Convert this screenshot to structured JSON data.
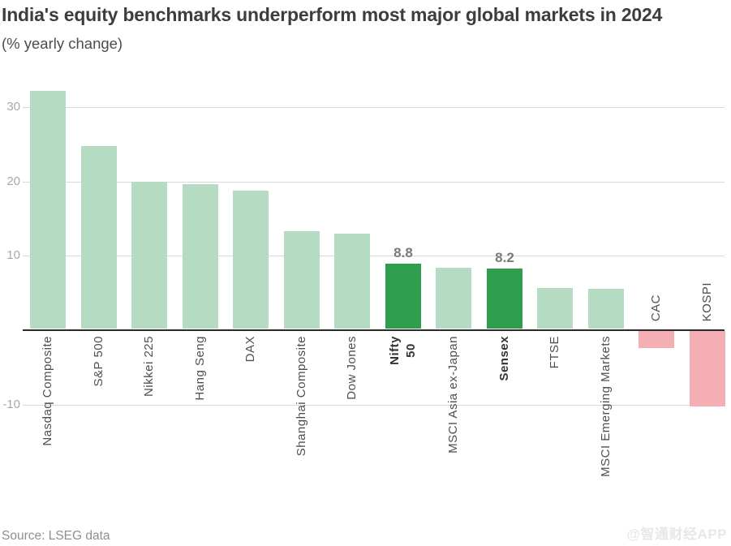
{
  "title": "India's equity benchmarks underperform most major global markets in 2024",
  "subtitle": "(% yearly change)",
  "source": "Source: LSEG data",
  "watermark": "@智通财经APP",
  "chart_data": {
    "type": "bar",
    "title": "India's equity benchmarks underperform most major global markets in 2024",
    "subtitle": "(% yearly change)",
    "xlabel": "",
    "ylabel": "% yearly change",
    "categories": [
      "Nasdaq Composite",
      "S&P 500",
      "Nikkei 225",
      "Hang Seng",
      "DAX",
      "Shanghai Composite",
      "Dow Jones",
      "Nifty 50",
      "MSCI Asia ex-Japan",
      "Sensex",
      "FTSE",
      "MSCI Emerging Markets",
      "CAC",
      "KOSPI"
    ],
    "values": [
      32.1,
      24.6,
      19.9,
      19.5,
      18.7,
      13.2,
      12.9,
      8.8,
      8.3,
      8.2,
      5.6,
      5.4,
      -2.4,
      -10.2
    ],
    "data_labels": [
      null,
      null,
      null,
      null,
      null,
      null,
      null,
      "8.8",
      null,
      "8.2",
      null,
      null,
      null,
      null
    ],
    "bar_styles": [
      "light_green",
      "light_green",
      "light_green",
      "light_green",
      "light_green",
      "light_green",
      "light_green",
      "dark_green",
      "light_green",
      "dark_green",
      "light_green",
      "light_green",
      "pink",
      "pink"
    ],
    "palette": {
      "light_green": "#b5dcc2",
      "dark_green": "#2e9e4e",
      "pink": "#f5afb4"
    },
    "bold_categories": [
      "Nifty 50",
      "Sensex"
    ],
    "two_line_categories": [
      "Nifty 50"
    ],
    "y_ticks": [
      30,
      20,
      10,
      -10
    ],
    "ylim": [
      -12,
      34
    ],
    "grid": true,
    "legend": "none"
  }
}
